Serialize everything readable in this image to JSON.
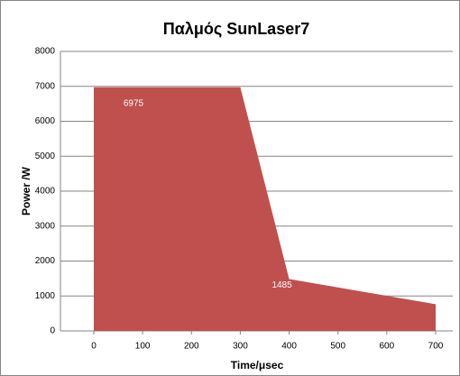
{
  "chart_data": {
    "type": "area",
    "title": "Παλμός SunLaser7",
    "x": [
      0,
      300,
      400,
      700
    ],
    "series": [
      {
        "color": "#c0504d",
        "values": [
          6975,
          6975,
          1485,
          765
        ],
        "show_labels": [
          true,
          false,
          true,
          true
        ]
      }
    ],
    "xlabel": "Time/μsec",
    "ylabel": "Power /W",
    "xlim": [
      0,
      700
    ],
    "xticks": [
      0,
      100,
      200,
      300,
      400,
      500,
      600,
      700
    ],
    "ylim": [
      0,
      8000
    ],
    "yticks": [
      0,
      1000,
      2000,
      3000,
      4000,
      5000,
      6000,
      7000,
      8000
    ],
    "grid": true
  }
}
